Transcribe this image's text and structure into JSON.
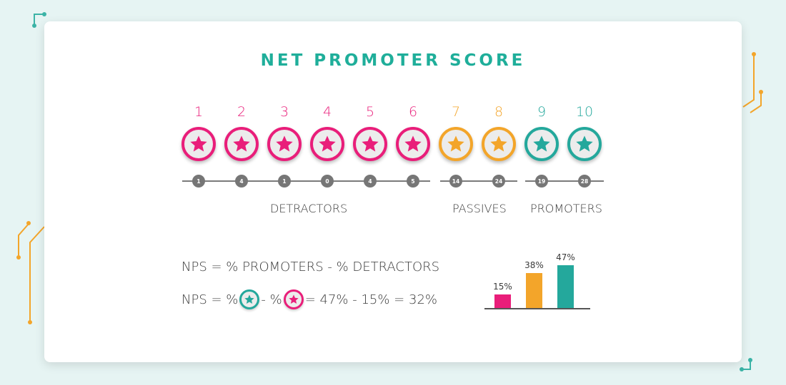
{
  "title": "NET PROMOTER SCORE",
  "colors": {
    "detractor": "#e91e7a",
    "passive": "#f3a52a",
    "promoter": "#24a89c",
    "background": "#e6f4f3"
  },
  "scale": [
    {
      "score": "1",
      "count": "1",
      "group": "detractor"
    },
    {
      "score": "2",
      "count": "4",
      "group": "detractor"
    },
    {
      "score": "3",
      "count": "1",
      "group": "detractor"
    },
    {
      "score": "4",
      "count": "0",
      "group": "detractor"
    },
    {
      "score": "5",
      "count": "4",
      "group": "detractor"
    },
    {
      "score": "6",
      "count": "5",
      "group": "detractor"
    },
    {
      "score": "7",
      "count": "14",
      "group": "passive"
    },
    {
      "score": "8",
      "count": "24",
      "group": "passive"
    },
    {
      "score": "9",
      "count": "19",
      "group": "promoter"
    },
    {
      "score": "10",
      "count": "28",
      "group": "promoter"
    }
  ],
  "groups": {
    "detractors": "DETRACTORS",
    "passives": "PASSIVES",
    "promoters": "PROMOTERS"
  },
  "formula": {
    "line1": "NPS = % PROMOTERS - % DETRACTORS",
    "line2_prefix": "NPS = %",
    "line2_mid": " - %",
    "line2_suffix": "= 47% - 15% = 32%"
  },
  "chart_data": {
    "type": "bar",
    "categories": [
      "Detractors",
      "Passives",
      "Promoters"
    ],
    "values": [
      15,
      38,
      47
    ],
    "labels": [
      "15%",
      "38%",
      "47%"
    ],
    "colors": [
      "#e91e7a",
      "#f3a52a",
      "#24a89c"
    ],
    "ylim": [
      0,
      47
    ]
  }
}
